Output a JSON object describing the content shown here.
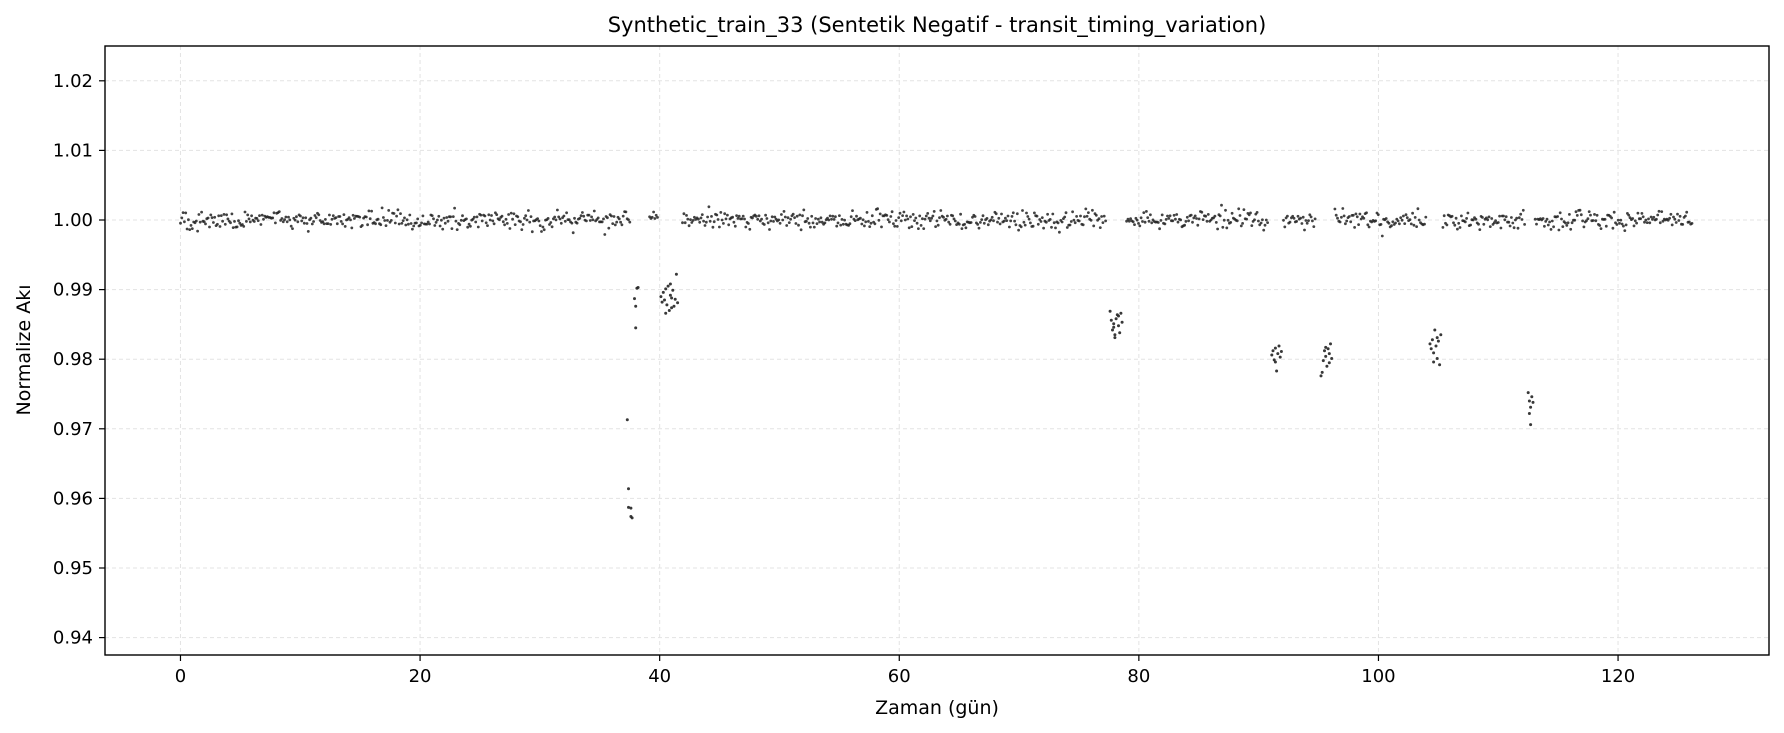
{
  "chart_data": {
    "type": "scatter",
    "title": "Synthetic_train_33 (Sentetik Negatif - transit_timing_variation)",
    "xlabel": "Zaman (gün)",
    "ylabel": "Normalize Akı",
    "xlim": [
      -6.3,
      132.6
    ],
    "ylim": [
      0.9375,
      1.025
    ],
    "xticks": [
      0,
      20,
      40,
      60,
      80,
      100,
      120
    ],
    "yticks": [
      0.94,
      0.95,
      0.96,
      0.97,
      0.98,
      0.99,
      1.0,
      1.01,
      1.02
    ],
    "ytick_labels": [
      "0.94",
      "0.95",
      "0.96",
      "0.97",
      "0.98",
      "0.99",
      "1.00",
      "1.01",
      "1.02"
    ],
    "grid": true,
    "marker_color": "#222222",
    "baseline": {
      "x_range": [
        0.0,
        126.2
      ],
      "flux_center": 1.0,
      "flux_scatter": 0.0013,
      "gaps": [
        [
          37.6,
          39.1
        ],
        [
          39.9,
          41.8
        ],
        [
          77.3,
          78.9
        ],
        [
          90.8,
          92.0
        ],
        [
          94.8,
          96.3
        ],
        [
          104.0,
          105.3
        ],
        [
          112.3,
          113.0
        ]
      ]
    },
    "transit_points": [
      {
        "x": 37.3,
        "y": 0.9713
      },
      {
        "x": 37.4,
        "y": 0.9614
      },
      {
        "x": 37.4,
        "y": 0.9587
      },
      {
        "x": 37.6,
        "y": 0.9586
      },
      {
        "x": 37.6,
        "y": 0.9574
      },
      {
        "x": 37.7,
        "y": 0.9572
      },
      {
        "x": 37.9,
        "y": 0.9887
      },
      {
        "x": 38.0,
        "y": 0.9876
      },
      {
        "x": 38.1,
        "y": 0.9902
      },
      {
        "x": 38.0,
        "y": 0.9845
      },
      {
        "x": 38.2,
        "y": 0.9903
      },
      {
        "x": 40.1,
        "y": 0.989
      },
      {
        "x": 40.2,
        "y": 0.9882
      },
      {
        "x": 40.3,
        "y": 0.9896
      },
      {
        "x": 40.4,
        "y": 0.9885
      },
      {
        "x": 40.5,
        "y": 0.9901
      },
      {
        "x": 40.6,
        "y": 0.9878
      },
      {
        "x": 40.7,
        "y": 0.9905
      },
      {
        "x": 40.8,
        "y": 0.987
      },
      {
        "x": 40.9,
        "y": 0.9892
      },
      {
        "x": 41.0,
        "y": 0.9888
      },
      {
        "x": 41.1,
        "y": 0.9899
      },
      {
        "x": 41.2,
        "y": 0.9876
      },
      {
        "x": 41.3,
        "y": 0.9886
      },
      {
        "x": 41.4,
        "y": 0.9922
      },
      {
        "x": 41.5,
        "y": 0.9881
      },
      {
        "x": 40.5,
        "y": 0.9866
      },
      {
        "x": 40.9,
        "y": 0.9908
      },
      {
        "x": 41.0,
        "y": 0.9874
      },
      {
        "x": 77.6,
        "y": 0.9869
      },
      {
        "x": 77.7,
        "y": 0.9856
      },
      {
        "x": 77.8,
        "y": 0.9842
      },
      {
        "x": 77.9,
        "y": 0.9851
      },
      {
        "x": 78.0,
        "y": 0.9835
      },
      {
        "x": 78.1,
        "y": 0.9858
      },
      {
        "x": 78.2,
        "y": 0.9864
      },
      {
        "x": 78.3,
        "y": 0.9848
      },
      {
        "x": 78.4,
        "y": 0.9838
      },
      {
        "x": 78.5,
        "y": 0.9866
      },
      {
        "x": 78.6,
        "y": 0.9853
      },
      {
        "x": 78.0,
        "y": 0.9831
      },
      {
        "x": 78.3,
        "y": 0.9862
      },
      {
        "x": 77.9,
        "y": 0.9846
      },
      {
        "x": 91.1,
        "y": 0.9806
      },
      {
        "x": 91.2,
        "y": 0.9812
      },
      {
        "x": 91.3,
        "y": 0.9799
      },
      {
        "x": 91.4,
        "y": 0.9816
      },
      {
        "x": 91.5,
        "y": 0.9783
      },
      {
        "x": 91.6,
        "y": 0.9808
      },
      {
        "x": 91.7,
        "y": 0.9819
      },
      {
        "x": 91.8,
        "y": 0.9803
      },
      {
        "x": 91.4,
        "y": 0.9796
      },
      {
        "x": 91.9,
        "y": 0.9811
      },
      {
        "x": 95.2,
        "y": 0.9776
      },
      {
        "x": 95.3,
        "y": 0.9781
      },
      {
        "x": 95.4,
        "y": 0.9798
      },
      {
        "x": 95.5,
        "y": 0.9812
      },
      {
        "x": 95.6,
        "y": 0.9804
      },
      {
        "x": 95.7,
        "y": 0.979
      },
      {
        "x": 95.8,
        "y": 0.9815
      },
      {
        "x": 95.9,
        "y": 0.9808
      },
      {
        "x": 96.0,
        "y": 0.9822
      },
      {
        "x": 96.1,
        "y": 0.9801
      },
      {
        "x": 95.6,
        "y": 0.9817
      },
      {
        "x": 95.9,
        "y": 0.9795
      },
      {
        "x": 104.3,
        "y": 0.9822
      },
      {
        "x": 104.4,
        "y": 0.9815
      },
      {
        "x": 104.5,
        "y": 0.9828
      },
      {
        "x": 104.6,
        "y": 0.9809
      },
      {
        "x": 104.7,
        "y": 0.9842
      },
      {
        "x": 104.8,
        "y": 0.9819
      },
      {
        "x": 104.9,
        "y": 0.9801
      },
      {
        "x": 105.0,
        "y": 0.9826
      },
      {
        "x": 105.1,
        "y": 0.9792
      },
      {
        "x": 105.2,
        "y": 0.9835
      },
      {
        "x": 104.6,
        "y": 0.9796
      },
      {
        "x": 104.9,
        "y": 0.9831
      },
      {
        "x": 112.5,
        "y": 0.9752
      },
      {
        "x": 112.6,
        "y": 0.974
      },
      {
        "x": 112.7,
        "y": 0.9731
      },
      {
        "x": 112.8,
        "y": 0.9746
      },
      {
        "x": 112.6,
        "y": 0.9722
      },
      {
        "x": 112.7,
        "y": 0.9706
      },
      {
        "x": 112.9,
        "y": 0.9738
      }
    ]
  }
}
